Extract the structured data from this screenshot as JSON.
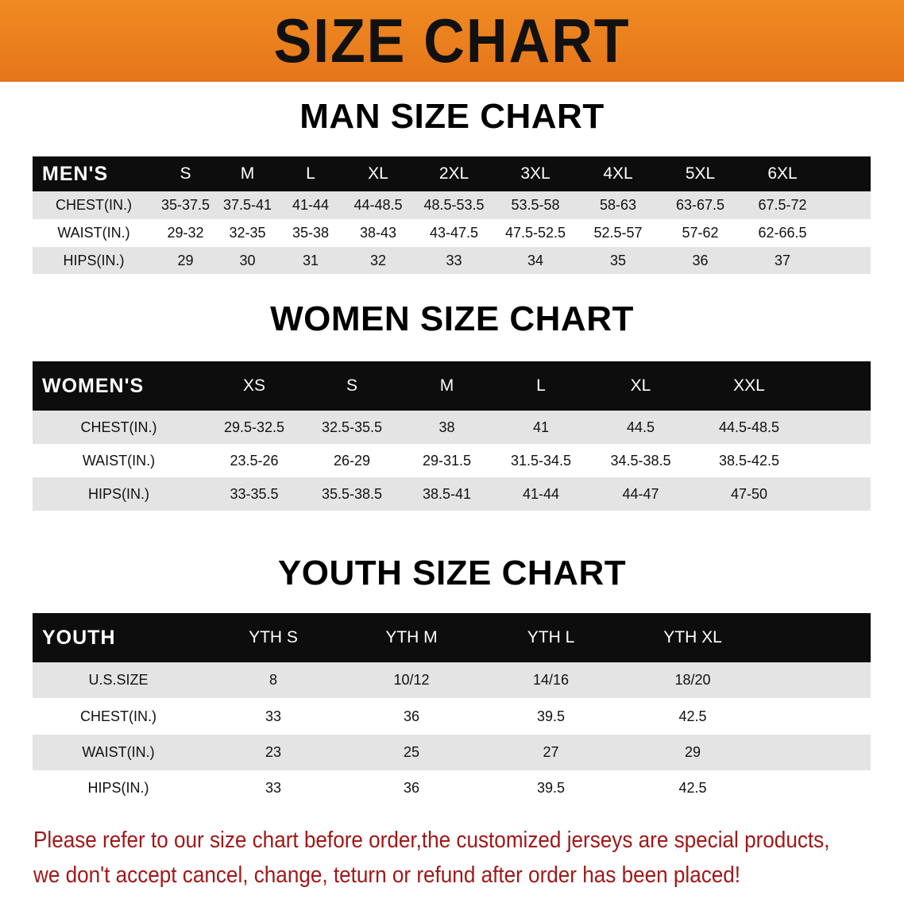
{
  "banner_title": "SIZE CHART",
  "men": {
    "title": "MAN SIZE CHART",
    "header": [
      "MEN'S",
      "S",
      "M",
      "L",
      "XL",
      "2XL",
      "3XL",
      "4XL",
      "5XL",
      "6XL"
    ],
    "rows": [
      [
        "CHEST(IN.)",
        "35-37.5",
        "37.5-41",
        "41-44",
        "44-48.5",
        "48.5-53.5",
        "53.5-58",
        "58-63",
        "63-67.5",
        "67.5-72"
      ],
      [
        "WAIST(IN.)",
        "29-32",
        "32-35",
        "35-38",
        "38-43",
        "43-47.5",
        "47.5-52.5",
        "52.5-57",
        "57-62",
        "62-66.5"
      ],
      [
        "HIPS(IN.)",
        "29",
        "30",
        "31",
        "32",
        "33",
        "34",
        "35",
        "36",
        "37"
      ]
    ]
  },
  "women": {
    "title": "WOMEN SIZE CHART",
    "header": [
      "WOMEN'S",
      "XS",
      "S",
      "M",
      "L",
      "XL",
      "XXL"
    ],
    "rows": [
      [
        "CHEST(IN.)",
        "29.5-32.5",
        "32.5-35.5",
        "38",
        "41",
        "44.5",
        "44.5-48.5"
      ],
      [
        "WAIST(IN.)",
        "23.5-26",
        "26-29",
        "29-31.5",
        "31.5-34.5",
        "34.5-38.5",
        "38.5-42.5"
      ],
      [
        "HIPS(IN.)",
        "33-35.5",
        "35.5-38.5",
        "38.5-41",
        "41-44",
        "44-47",
        "47-50"
      ]
    ]
  },
  "youth": {
    "title": "YOUTH SIZE CHART",
    "header": [
      "YOUTH",
      "YTH S",
      "YTH M",
      "YTH L",
      "YTH XL"
    ],
    "rows": [
      [
        "U.S.SIZE",
        "8",
        "10/12",
        "14/16",
        "18/20"
      ],
      [
        "CHEST(IN.)",
        "33",
        "36",
        "39.5",
        "42.5"
      ],
      [
        "WAIST(IN.)",
        "23",
        "25",
        "27",
        "29"
      ],
      [
        "HIPS(IN.)",
        "33",
        "36",
        "39.5",
        "42.5"
      ]
    ]
  },
  "note": {
    "line1": "Please refer to our size chart before order,the customized jerseys are special products,",
    "line2": "we don't accept cancel, change, teturn or refund after order has been placed!"
  },
  "colors": {
    "banner": "#e87a1c",
    "header_row": "#0d0d0d",
    "note_text": "#a11818"
  }
}
